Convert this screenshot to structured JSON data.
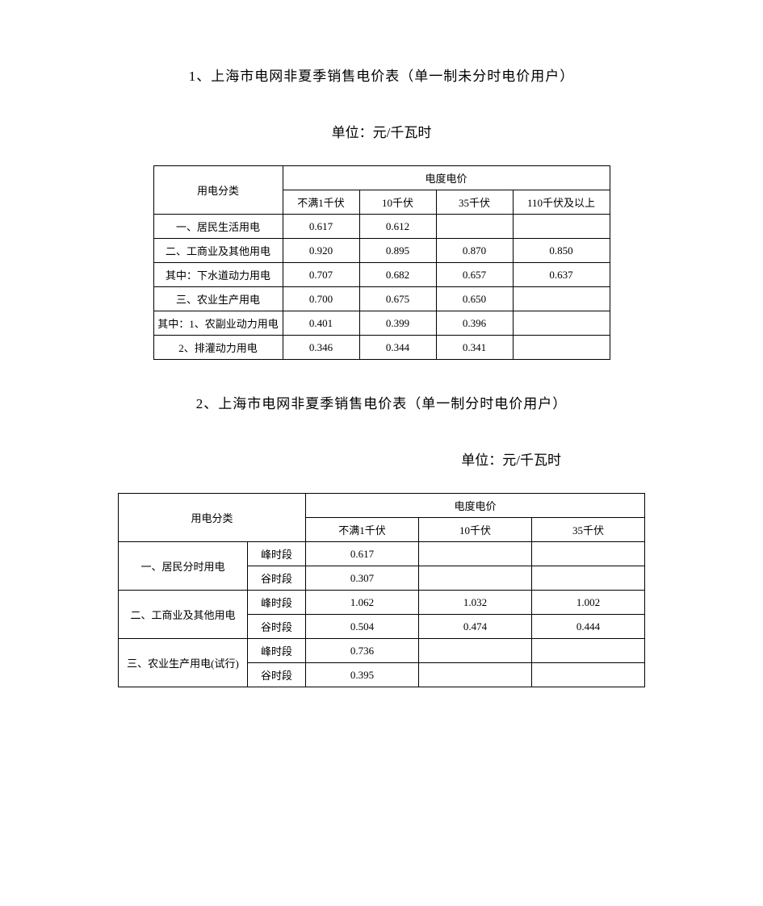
{
  "page": {
    "unit_label_prefix": "单位：",
    "section1": {
      "title": "1、上海市电网非夏季销售电价表（单一制未分时电价用户）",
      "unit": "元/千瓦时",
      "table": {
        "row_header": "用电分类",
        "group_header": "电度电价",
        "columns": [
          "不满1千伏",
          "10千伏",
          "35千伏",
          "110千伏及以上"
        ],
        "rows": [
          {
            "label": "一、居民生活用电",
            "values": [
              "0.617",
              "0.612",
              "",
              ""
            ]
          },
          {
            "label": "二、工商业及其他用电",
            "values": [
              "0.920",
              "0.895",
              "0.870",
              "0.850"
            ]
          },
          {
            "label": "其中：下水道动力用电",
            "values": [
              "0.707",
              "0.682",
              "0.657",
              "0.637"
            ]
          },
          {
            "label": "三、农业生产用电",
            "values": [
              "0.700",
              "0.675",
              "0.650",
              ""
            ]
          },
          {
            "label": "其中：1、农副业动力用电",
            "values": [
              "0.401",
              "0.399",
              "0.396",
              ""
            ]
          },
          {
            "label": "2、排灌动力用电",
            "values": [
              "0.346",
              "0.344",
              "0.341",
              ""
            ]
          }
        ]
      }
    },
    "section2": {
      "title": "2、上海市电网非夏季销售电价表（单一制分时电价用户）",
      "unit": "元/千瓦时",
      "table": {
        "row_header": "用电分类",
        "group_header": "电度电价",
        "columns": [
          "不满1千伏",
          "10千伏",
          "35千伏"
        ],
        "period_labels": {
          "peak": "峰时段",
          "valley": "谷时段"
        },
        "groups": [
          {
            "label": "一、居民分时用电",
            "rows": [
              {
                "period": "peak",
                "values": [
                  "0.617",
                  "",
                  ""
                ]
              },
              {
                "period": "valley",
                "values": [
                  "0.307",
                  "",
                  ""
                ]
              }
            ]
          },
          {
            "label": "二、工商业及其他用电",
            "rows": [
              {
                "period": "peak",
                "values": [
                  "1.062",
                  "1.032",
                  "1.002"
                ]
              },
              {
                "period": "valley",
                "values": [
                  "0.504",
                  "0.474",
                  "0.444"
                ]
              }
            ]
          },
          {
            "label": "三、农业生产用电(试行)",
            "rows": [
              {
                "period": "peak",
                "values": [
                  "0.736",
                  "",
                  ""
                ]
              },
              {
                "period": "valley",
                "values": [
                  "0.395",
                  "",
                  ""
                ]
              }
            ]
          }
        ]
      }
    }
  },
  "style": {
    "background_color": "#ffffff",
    "text_color": "#000000",
    "border_color": "#000000",
    "title_fontsize": 17,
    "unit_fontsize": 17,
    "cell_fontsize": 13,
    "font_family": "SimSun"
  }
}
